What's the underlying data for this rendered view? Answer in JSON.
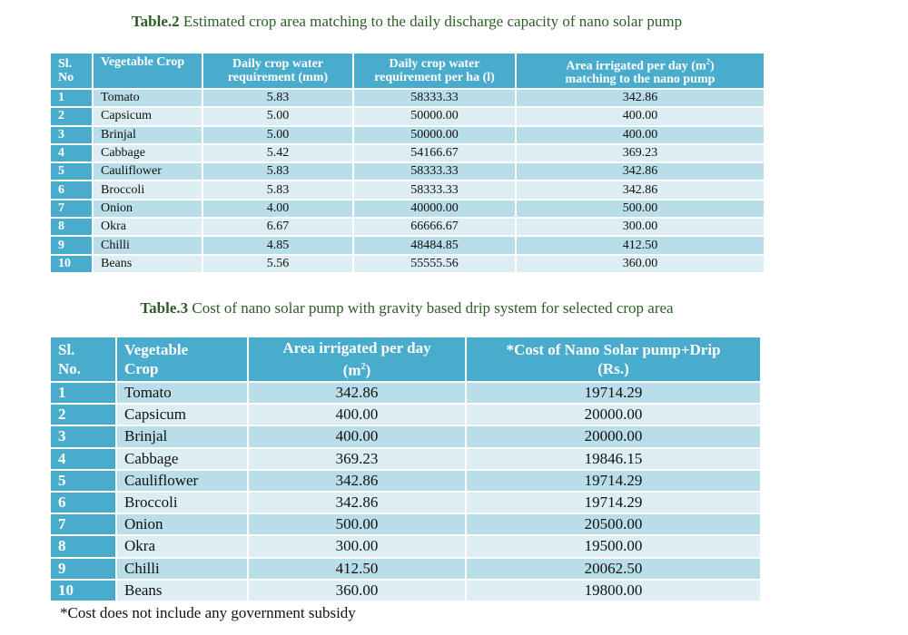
{
  "table2": {
    "caption_label": "Table.2",
    "caption_text": " Estimated crop area matching to the daily discharge capacity of nano solar pump",
    "headers": {
      "sl_line1": "Sl.",
      "sl_line2": "No",
      "crop": "Vegetable Crop",
      "water_mm_line1": "Daily crop water",
      "water_mm_line2": "requirement (mm)",
      "water_ha_line1": "Daily crop water",
      "water_ha_line2": "requirement per ha (l)",
      "area_line1": "Area irrigated per day (m",
      "area_sup": "2",
      "area_line1_end": ")",
      "area_line2": "matching to the nano pump"
    },
    "rows": [
      {
        "sl": "1",
        "crop": "Tomato",
        "mm": "5.83",
        "ha": "58333.33",
        "area": "342.86"
      },
      {
        "sl": "2",
        "crop": "Capsicum",
        "mm": "5.00",
        "ha": "50000.00",
        "area": "400.00"
      },
      {
        "sl": "3",
        "crop": "Brinjal",
        "mm": "5.00",
        "ha": "50000.00",
        "area": "400.00"
      },
      {
        "sl": "4",
        "crop": "Cabbage",
        "mm": "5.42",
        "ha": "54166.67",
        "area": "369.23"
      },
      {
        "sl": "5",
        "crop": "Cauliflower",
        "mm": "5.83",
        "ha": "58333.33",
        "area": "342.86"
      },
      {
        "sl": "6",
        "crop": "Broccoli",
        "mm": "5.83",
        "ha": "58333.33",
        "area": "342.86"
      },
      {
        "sl": "7",
        "crop": "Onion",
        "mm": "4.00",
        "ha": "40000.00",
        "area": "500.00"
      },
      {
        "sl": "8",
        "crop": "Okra",
        "mm": "6.67",
        "ha": "66666.67",
        "area": "300.00"
      },
      {
        "sl": "9",
        "crop": "Chilli",
        "mm": "4.85",
        "ha": "48484.85",
        "area": "412.50"
      },
      {
        "sl": "10",
        "crop": "Beans",
        "mm": "5.56",
        "ha": "55555.56",
        "area": "360.00"
      }
    ]
  },
  "table3": {
    "caption_label": "Table.3",
    "caption_text": " Cost of nano solar pump with gravity based drip system for selected crop area",
    "headers": {
      "sl_line1": "Sl.",
      "sl_line2": "No.",
      "crop_line1": "Vegetable",
      "crop_line2": "Crop",
      "area_line1": "Area irrigated per day",
      "area_line2": "(m",
      "area_sup": "2",
      "area_line2_end": ")",
      "cost_line1": "*Cost of Nano Solar pump+Drip",
      "cost_line2": "(Rs.)"
    },
    "rows": [
      {
        "sl": "1",
        "crop": "Tomato",
        "area": "342.86",
        "cost": "19714.29"
      },
      {
        "sl": "2",
        "crop": "Capsicum",
        "area": "400.00",
        "cost": "20000.00"
      },
      {
        "sl": "3",
        "crop": "Brinjal",
        "area": "400.00",
        "cost": "20000.00"
      },
      {
        "sl": "4",
        "crop": "Cabbage",
        "area": "369.23",
        "cost": "19846.15"
      },
      {
        "sl": "5",
        "crop": "Cauliflower",
        "area": "342.86",
        "cost": "19714.29"
      },
      {
        "sl": "6",
        "crop": "Broccoli",
        "area": "342.86",
        "cost": "19714.29"
      },
      {
        "sl": "7",
        "crop": "Onion",
        "area": "500.00",
        "cost": "20500.00"
      },
      {
        "sl": "8",
        "crop": "Okra",
        "area": "300.00",
        "cost": "19500.00"
      },
      {
        "sl": "9",
        "crop": "Chilli",
        "area": "412.50",
        "cost": "20062.50"
      },
      {
        "sl": "10",
        "crop": "Beans",
        "area": "360.00",
        "cost": "19800.00"
      }
    ]
  },
  "footnote": "*Cost does not include any government subsidy",
  "colors": {
    "header_bg": "#4aaccd",
    "row_dark": "#b9dde9",
    "row_light": "#dceef4",
    "caption": "#2b5d25"
  }
}
